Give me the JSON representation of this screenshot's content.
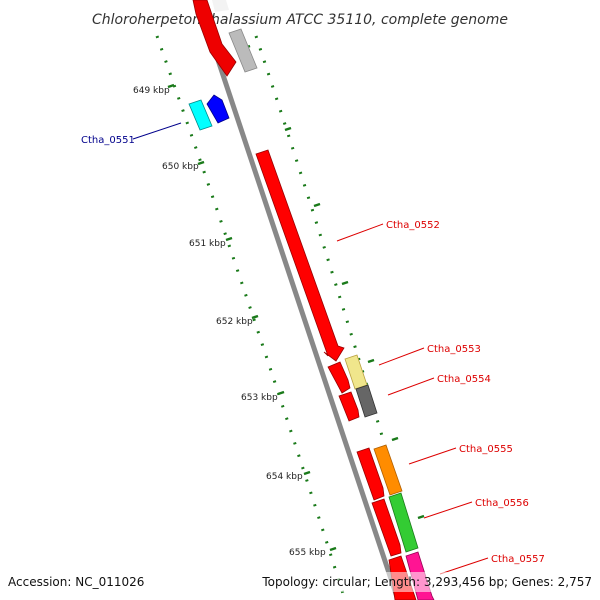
{
  "title": "Chloroherpeton thalassium ATCC 35110, complete genome",
  "footer": {
    "accession": "Accession: NC_011026",
    "summary": "Topology: circular; Length: 3,293,456 bp; Genes: 2,757"
  },
  "ticks": [
    "649 kbp",
    "650 kbp",
    "651 kbp",
    "652 kbp",
    "653 kbp",
    "654 kbp",
    "655 kbp"
  ],
  "genes": [
    {
      "name": "Ctha_0551",
      "color": "#00008b"
    },
    {
      "name": "Ctha_0552",
      "color": "#dd0000"
    },
    {
      "name": "Ctha_0553",
      "color": "#dd0000"
    },
    {
      "name": "Ctha_0554",
      "color": "#dd0000"
    },
    {
      "name": "Ctha_0555",
      "color": "#dd0000"
    },
    {
      "name": "Ctha_0556",
      "color": "#dd0000"
    },
    {
      "name": "Ctha_0557",
      "color": "#dd0000"
    }
  ],
  "colors": {
    "cds_red": "#ff0000",
    "blue_cds": "#0000ff",
    "cyan": "#00ffff",
    "grey_light": "#bbbbbb",
    "grey_dark": "#666666",
    "yellow": "#f0e68c",
    "orange": "#ff8c00",
    "green": "#33cc33",
    "pink": "#ff1493",
    "backbone": "#888888",
    "ticks": "#1a7a1a"
  }
}
